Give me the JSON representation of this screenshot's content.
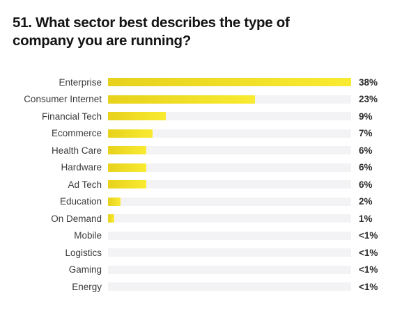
{
  "page": {
    "title_line1": "51. What sector best describes the type of",
    "title_line2": "company you are running?"
  },
  "chart_data": {
    "type": "bar",
    "orientation": "horizontal",
    "title": "51. What sector best describes the type of company you are running?",
    "categories": [
      "Enterprise",
      "Consumer Internet",
      "Financial Tech",
      "Ecommerce",
      "Health Care",
      "Hardware",
      "Ad Tech",
      "Education",
      "On Demand",
      "Mobile",
      "Logistics",
      "Gaming",
      "Energy"
    ],
    "values": [
      38,
      23,
      9,
      7,
      6,
      6,
      6,
      2,
      1,
      0.5,
      0.5,
      0.5,
      0.5
    ],
    "value_labels": [
      "38%",
      "23%",
      "9%",
      "7%",
      "6%",
      "6%",
      "6%",
      "2%",
      "1%",
      "<1%",
      "<1%",
      "<1%",
      "<1%"
    ],
    "bar_fill_pct": [
      100,
      60.5,
      23.7,
      18.4,
      15.8,
      15.8,
      15.8,
      5.3,
      2.6,
      0,
      0,
      0,
      0
    ],
    "xlim": [
      0,
      38
    ],
    "grid": false,
    "legend": false,
    "colors": {
      "bar_gradient_start": "#e7d11c",
      "bar_gradient_end": "#f9eb31",
      "track": "#f3f3f5",
      "title_text": "#141414",
      "category_text": "#3b3b3b",
      "value_text": "#2c2c2c",
      "background": "#ffffff"
    }
  }
}
